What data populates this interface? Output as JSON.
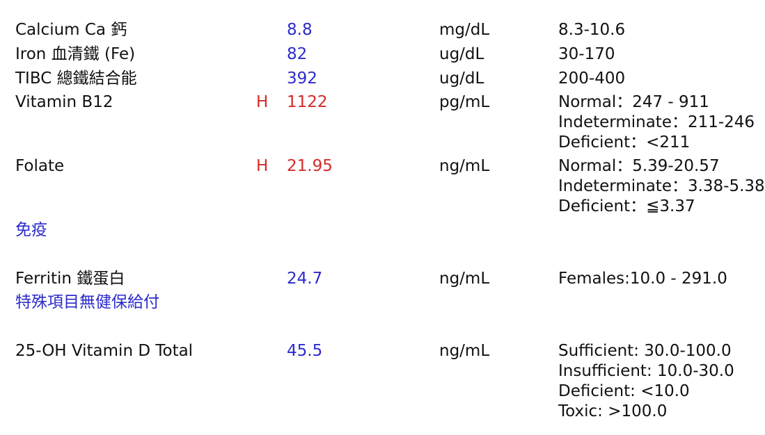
{
  "rows": [
    {
      "name": "Calcium Ca 鈣",
      "flag": "",
      "value": "8.8",
      "unit": "mg/dL",
      "ref": [
        "8.3-10.6"
      ]
    },
    {
      "name": "Iron 血清鐵 (Fe)",
      "flag": "",
      "value": "82",
      "unit": "ug/dL",
      "ref": [
        "30-170"
      ]
    },
    {
      "name": "TIBC 總鐵結合能",
      "flag": "",
      "value": "392",
      "unit": "ug/dL",
      "ref": [
        "200-400"
      ]
    },
    {
      "name": "Vitamin B12",
      "flag": "H",
      "value": "1122",
      "unit": "pg/mL",
      "ref": [
        "Normal：247 - 911",
        "Indeterminate：211-246",
        "Deficient：<211"
      ]
    },
    {
      "name": "Folate",
      "flag": "H",
      "value": "21.95",
      "unit": "ng/mL",
      "ref": [
        "Normal：5.39-20.57",
        "Indeterminate：3.38-5.38",
        "Deficient：≦3.37"
      ]
    },
    {
      "name": "Ferritin 鐵蛋白",
      "flag": "",
      "value": "24.7",
      "unit": "ng/mL",
      "ref": [
        "Females:10.0 - 291.0"
      ]
    },
    {
      "name": "25-OH Vitamin D Total",
      "flag": "",
      "value": "45.5",
      "unit": "ng/mL",
      "ref": [
        "Sufficient: 30.0-100.0",
        "Insufficient: 10.0-30.0",
        "Deficient: <10.0",
        "Toxic: >100.0"
      ]
    }
  ],
  "sections": {
    "immunology": "免疫",
    "special_items": "特殊項目無健保給付"
  },
  "colors": {
    "normal_value": "#2b2bcc",
    "high_value": "#d42a2a",
    "section_label": "#2b2bcc",
    "text": "#111111"
  }
}
